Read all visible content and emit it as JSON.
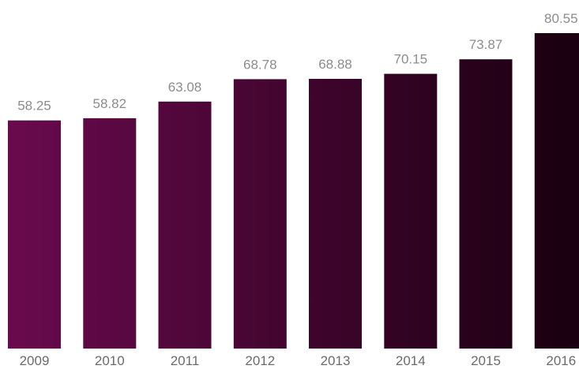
{
  "chart_data": {
    "type": "bar",
    "title": "",
    "xlabel": "",
    "ylabel": "",
    "categories": [
      "2009",
      "2010",
      "2011",
      "2012",
      "2013",
      "2014",
      "2015",
      "2016"
    ],
    "values": [
      58.25,
      58.82,
      63.08,
      68.78,
      68.88,
      70.15,
      73.87,
      80.55
    ],
    "value_labels": [
      "58.25",
      "58.82",
      "63.08",
      "68.78",
      "68.88",
      "70.15",
      "73.87",
      "80.55"
    ],
    "ylim": [
      0,
      80.55
    ],
    "grid": false,
    "legend": "none",
    "data_labels": true
  },
  "colors": {
    "bar_gradient_start": "#6a0a4e",
    "bar_gradient_end": "#1a0010",
    "label_text": "#8c8c8c",
    "tick_text": "#6b6b6b",
    "background": "#ffffff"
  }
}
